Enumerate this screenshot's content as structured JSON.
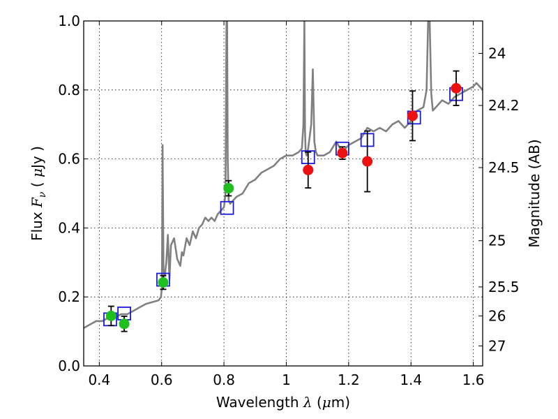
{
  "chart_data": {
    "type": "scatter",
    "xlabel_text": "Wavelength",
    "xlabel_symbol": "λ",
    "xlabel_unit_open": " (",
    "xlabel_unit_mu": "μ",
    "xlabel_unit_rest": "m)",
    "ylabel_text": "Flux",
    "ylabel_symbol": "F",
    "ylabel_sub": "ν",
    "ylabel_unit_open": " ( ",
    "ylabel_unit_mu": "μ",
    "ylabel_unit_rest": "Jy )",
    "y2label": "Magnitude (AB)",
    "xlim": [
      0.35,
      1.63
    ],
    "ylim": [
      0.0,
      1.0
    ],
    "grid": true,
    "xticks": [
      0.4,
      0.6,
      0.8,
      1.0,
      1.2,
      1.4,
      1.6
    ],
    "xtick_labels": [
      "0.4",
      "0.6",
      "0.8",
      "1",
      "1.2",
      "1.4",
      "1.6"
    ],
    "yticks": [
      0.0,
      0.2,
      0.4,
      0.6,
      0.8,
      1.0
    ],
    "ytick_labels": [
      "0.0",
      "0.2",
      "0.4",
      "0.6",
      "0.8",
      "1.0"
    ],
    "y2ticks": [
      {
        "label": "24",
        "flux": 0.906
      },
      {
        "label": "24.2",
        "flux": 0.755
      },
      {
        "label": "24.5",
        "flux": 0.575
      },
      {
        "label": "25",
        "flux": 0.363
      },
      {
        "label": "25.5",
        "flux": 0.229
      },
      {
        "label": "26",
        "flux": 0.145
      },
      {
        "label": "27",
        "flux": 0.058
      }
    ],
    "colors": {
      "spectrum": "#808080",
      "green_points": "#1fbf1f",
      "red_points": "#ee1111",
      "model_boxes": "#1a1adf",
      "errorbars": "#000000"
    },
    "series": [
      {
        "name": "template spectrum",
        "kind": "line",
        "x": [
          0.35,
          0.37,
          0.39,
          0.41,
          0.43,
          0.45,
          0.47,
          0.49,
          0.51,
          0.53,
          0.55,
          0.57,
          0.59,
          0.598,
          0.601,
          0.603,
          0.606,
          0.61,
          0.615,
          0.62,
          0.625,
          0.63,
          0.64,
          0.65,
          0.66,
          0.665,
          0.67,
          0.68,
          0.69,
          0.7,
          0.71,
          0.72,
          0.73,
          0.74,
          0.75,
          0.76,
          0.77,
          0.78,
          0.79,
          0.8,
          0.805,
          0.808,
          0.81,
          0.812,
          0.815,
          0.82,
          0.84,
          0.86,
          0.88,
          0.9,
          0.92,
          0.94,
          0.96,
          0.98,
          1.0,
          1.02,
          1.04,
          1.05,
          1.055,
          1.058,
          1.06,
          1.062,
          1.065,
          1.07,
          1.08,
          1.085,
          1.09,
          1.095,
          1.1,
          1.12,
          1.14,
          1.16,
          1.18,
          1.2,
          1.22,
          1.24,
          1.26,
          1.28,
          1.3,
          1.32,
          1.34,
          1.36,
          1.38,
          1.4,
          1.42,
          1.44,
          1.45,
          1.455,
          1.46,
          1.465,
          1.47,
          1.48,
          1.5,
          1.52,
          1.54,
          1.56,
          1.58,
          1.6,
          1.61,
          1.63
        ],
        "y": [
          0.11,
          0.12,
          0.13,
          0.13,
          0.14,
          0.14,
          0.15,
          0.15,
          0.16,
          0.17,
          0.18,
          0.185,
          0.19,
          0.2,
          0.23,
          0.64,
          0.28,
          0.26,
          0.3,
          0.38,
          0.25,
          0.35,
          0.37,
          0.31,
          0.29,
          0.33,
          0.32,
          0.37,
          0.35,
          0.39,
          0.37,
          0.4,
          0.41,
          0.43,
          0.42,
          0.43,
          0.42,
          0.44,
          0.45,
          0.46,
          0.5,
          1.0,
          1.0,
          0.6,
          0.48,
          0.47,
          0.49,
          0.5,
          0.53,
          0.54,
          0.56,
          0.57,
          0.58,
          0.6,
          0.61,
          0.61,
          0.62,
          0.63,
          0.7,
          1.0,
          0.68,
          0.62,
          0.61,
          0.63,
          0.7,
          0.86,
          0.65,
          0.62,
          0.61,
          0.61,
          0.62,
          0.65,
          0.62,
          0.64,
          0.65,
          0.66,
          0.69,
          0.68,
          0.69,
          0.68,
          0.7,
          0.71,
          0.69,
          0.71,
          0.74,
          0.75,
          0.8,
          1.0,
          1.0,
          0.79,
          0.74,
          0.75,
          0.77,
          0.76,
          0.78,
          0.79,
          0.8,
          0.81,
          0.82,
          0.8
        ]
      },
      {
        "name": "model photometry",
        "kind": "box",
        "x": [
          0.435,
          0.48,
          0.605,
          0.81,
          1.07,
          1.18,
          1.26,
          1.41,
          1.545
        ],
        "y": [
          0.135,
          0.152,
          0.25,
          0.458,
          0.605,
          0.63,
          0.655,
          0.72,
          0.788
        ]
      },
      {
        "name": "optical photometry",
        "kind": "point",
        "x": [
          0.438,
          0.48,
          0.605,
          0.815
        ],
        "y": [
          0.145,
          0.122,
          0.242,
          0.515
        ],
        "yerr": [
          0.028,
          0.022,
          0.02,
          0.022
        ]
      },
      {
        "name": "near-infrared photometry",
        "kind": "point",
        "x": [
          1.07,
          1.18,
          1.26,
          1.405,
          1.545
        ],
        "y": [
          0.568,
          0.617,
          0.593,
          0.725,
          0.805
        ],
        "yerr": [
          0.052,
          0.018,
          0.088,
          0.072,
          0.05
        ]
      }
    ]
  }
}
